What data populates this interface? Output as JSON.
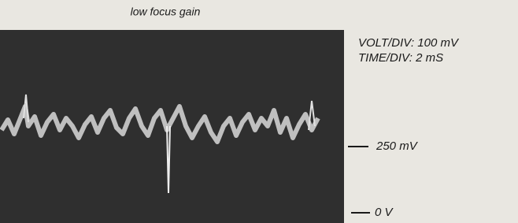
{
  "title": "low focus gain",
  "scope_settings": {
    "volt_div": "VOLT/DIV:  100 mV",
    "time_div": "TIME/DIV:  2 mS"
  },
  "markers": [
    {
      "label": "250 mV"
    },
    {
      "label": "0 V"
    }
  ]
}
